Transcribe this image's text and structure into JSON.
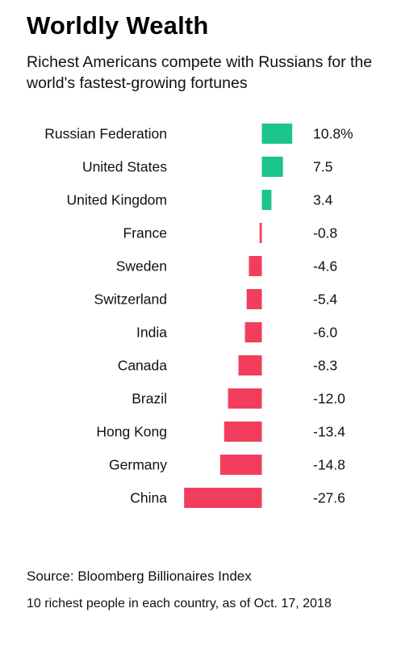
{
  "header": {
    "title": "Worldly Wealth",
    "subtitle": "Richest Americans compete with Russians for the world's fastest-growing fortunes"
  },
  "footer": {
    "source": "Source: Bloomberg Billionaires Index",
    "note": "10 richest people in each country, as of Oct. 17, 2018"
  },
  "colors": {
    "positive": "#1dc58a",
    "negative": "#f23e5c",
    "text": "#111111"
  },
  "chart_data": {
    "type": "bar",
    "orientation": "horizontal",
    "title": "Worldly Wealth",
    "subtitle": "Richest Americans compete with Russians for the world's fastest-growing fortunes",
    "unit": "%",
    "categories": [
      "Russian Federation",
      "United States",
      "United Kingdom",
      "France",
      "Sweden",
      "Switzerland",
      "India",
      "Canada",
      "Brazil",
      "Hong Kong",
      "Germany",
      "China"
    ],
    "values": [
      10.8,
      7.5,
      3.4,
      -0.8,
      -4.6,
      -5.4,
      -6.0,
      -8.3,
      -12.0,
      -13.4,
      -14.8,
      -27.6
    ],
    "value_labels": [
      "10.8%",
      "7.5",
      "3.4",
      "-0.8",
      "-4.6",
      "-5.4",
      "-6.0",
      "-8.3",
      "-12.0",
      "-13.4",
      "-14.8",
      "-27.6"
    ],
    "xlim": [
      -27.6,
      10.8
    ],
    "grid": false,
    "legend": "none"
  }
}
